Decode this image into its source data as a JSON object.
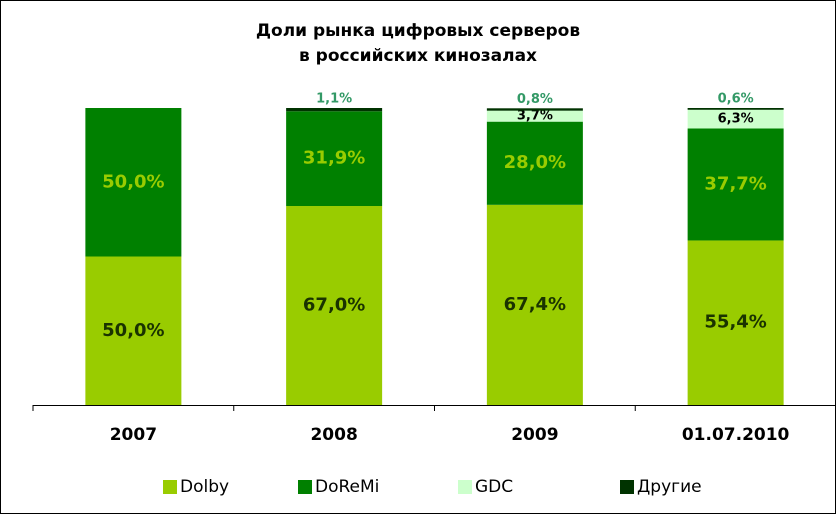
{
  "chart_data": {
    "type": "bar",
    "stacked": true,
    "title": [
      "Доли рынка цифровых серверов",
      "в российских кинозалах"
    ],
    "categories": [
      "2007",
      "2008",
      "2009",
      "01.07.2010"
    ],
    "series": [
      {
        "name": "Dolby",
        "color": "#99cc00",
        "label_color": "#1a3300",
        "values": [
          50.0,
          67.0,
          67.4,
          55.4
        ],
        "value_labels": [
          "50,0%",
          "67,0%",
          "67,4%",
          "55,4%"
        ]
      },
      {
        "name": "DoReMi",
        "color": "#008000",
        "label_color": "#99cc00",
        "values": [
          50.0,
          31.9,
          28.0,
          37.7
        ],
        "value_labels": [
          "50,0%",
          "31,9%",
          "28,0%",
          "37,7%"
        ]
      },
      {
        "name": "GDC",
        "color": "#ccffcc",
        "label_color": "#000000",
        "values": [
          null,
          null,
          3.7,
          6.3
        ],
        "value_labels": [
          null,
          null,
          "3,7%",
          "6,3%"
        ]
      },
      {
        "name": "Другие",
        "color": "#003300",
        "label_color": "#339966",
        "values": [
          null,
          1.1,
          0.8,
          0.6
        ],
        "value_labels": [
          null,
          "1,1%",
          "0,8%",
          "0,6%"
        ]
      }
    ],
    "legend": "bottom"
  }
}
